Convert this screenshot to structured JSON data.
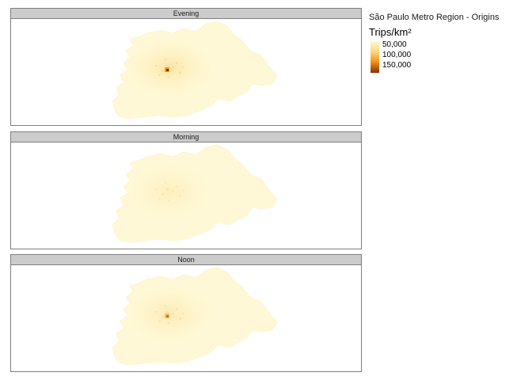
{
  "legend": {
    "title": "São Paulo Metro Region - Origins",
    "subtitle": "Trips/km²",
    "ticks": [
      "50,000",
      "100,000",
      "150,000"
    ],
    "tick_values": [
      50000,
      100000,
      150000
    ],
    "range": [
      0,
      160000
    ]
  },
  "colors": {
    "low": "#fff8d6",
    "mid": "#f7a11a",
    "high": "#8c2d04",
    "strip_bg": "#cccccc",
    "frame": "#7f7f7f"
  },
  "panels": [
    {
      "label": "Evening",
      "hotspot_level": 1.0
    },
    {
      "label": "Morning",
      "hotspot_level": 0.15
    },
    {
      "label": "Noon",
      "hotspot_level": 0.55
    }
  ]
}
